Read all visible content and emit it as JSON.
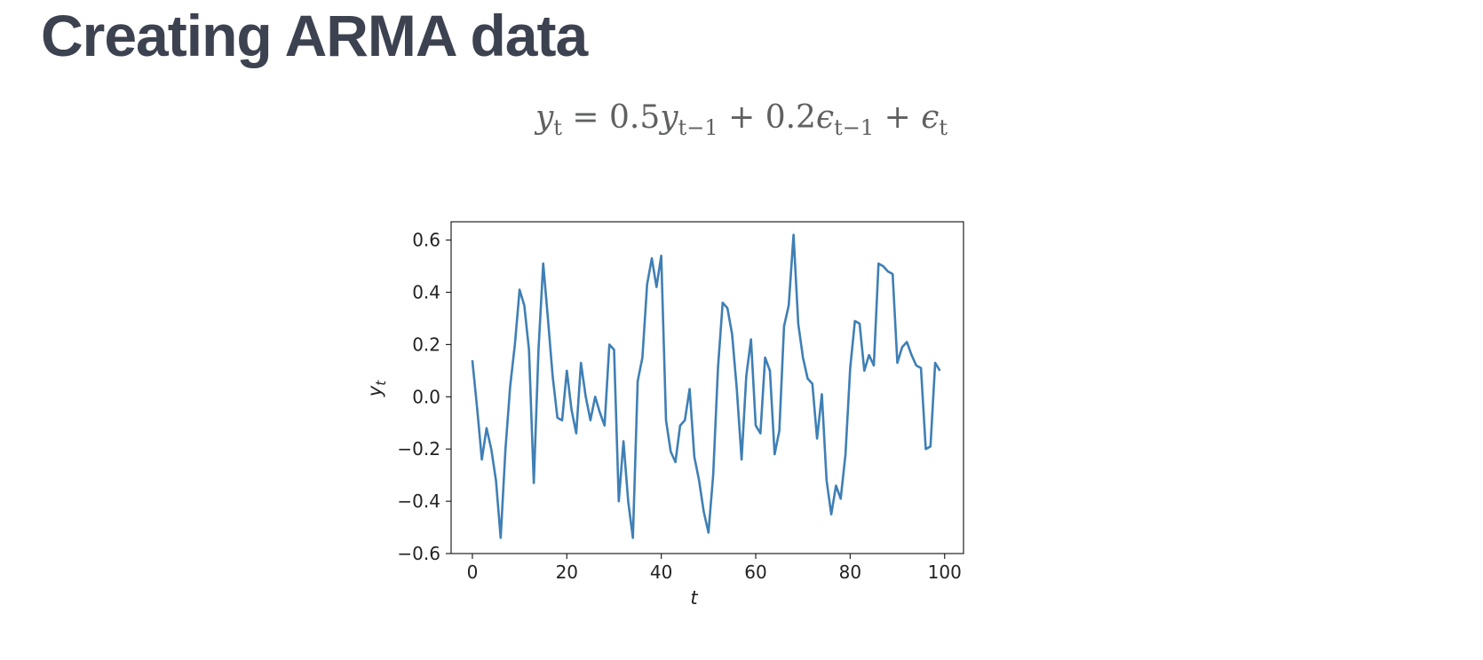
{
  "slide": {
    "title": "Creating ARMA data"
  },
  "equation": {
    "parts": [
      {
        "text": "y",
        "italic": true,
        "sub": "t"
      },
      {
        "text": " = 0.5",
        "italic": false
      },
      {
        "text": "y",
        "italic": true,
        "sub": "t−1"
      },
      {
        "text": " + 0.2",
        "italic": false
      },
      {
        "text": "ϵ",
        "italic": true,
        "sub": "t−1"
      },
      {
        "text": " + ",
        "italic": false
      },
      {
        "text": "ϵ",
        "italic": true,
        "sub": "t"
      }
    ]
  },
  "chart_data": {
    "type": "line",
    "title": "",
    "xlabel": "t",
    "ylabel": "y",
    "ylabel_sub": "t",
    "xlim": [
      -4.5,
      104
    ],
    "ylim": [
      -0.6,
      0.67
    ],
    "xticks": [
      0,
      20,
      40,
      60,
      80,
      100
    ],
    "yticks": [
      0.6,
      0.4,
      0.2,
      0.0,
      -0.2,
      -0.4,
      -0.6
    ],
    "ytick_labels": [
      "0.6",
      "0.4",
      "0.2",
      "0.0",
      "−0.2",
      "−0.4",
      "−0.6"
    ],
    "grid": false,
    "line_color": "#3f7fb5",
    "series": [
      {
        "x": [
          0,
          1,
          2,
          3,
          4,
          5,
          6,
          7,
          8,
          9,
          10,
          11,
          12,
          13,
          14,
          15,
          16,
          17,
          18,
          19,
          20,
          21,
          22,
          23,
          24,
          25,
          26,
          27,
          28,
          29,
          30,
          31,
          32,
          33,
          34,
          35,
          36,
          37,
          38,
          39,
          40,
          41,
          42,
          43,
          44,
          45,
          46,
          47,
          48,
          49,
          50,
          51,
          52,
          53,
          54,
          55,
          56,
          57,
          58,
          59,
          60,
          61,
          62,
          63,
          64,
          65,
          66,
          67,
          68,
          69,
          70,
          71,
          72,
          73,
          74,
          75,
          76,
          77,
          78,
          79,
          80,
          81,
          82,
          83,
          84,
          85,
          86,
          87,
          88,
          89,
          90,
          91,
          92,
          93,
          94,
          95,
          96,
          97,
          98,
          99
        ],
        "values": [
          0.14,
          -0.04,
          -0.24,
          -0.12,
          -0.2,
          -0.32,
          -0.54,
          -0.2,
          0.04,
          0.2,
          0.41,
          0.35,
          0.18,
          -0.33,
          0.18,
          0.51,
          0.3,
          0.08,
          -0.08,
          -0.09,
          0.1,
          -0.05,
          -0.14,
          0.13,
          0.0,
          -0.09,
          0.0,
          -0.06,
          -0.11,
          0.2,
          0.18,
          -0.4,
          -0.17,
          -0.4,
          -0.54,
          0.06,
          0.15,
          0.43,
          0.53,
          0.42,
          0.54,
          -0.09,
          -0.21,
          -0.25,
          -0.11,
          -0.09,
          0.03,
          -0.23,
          -0.32,
          -0.44,
          -0.52,
          -0.3,
          0.11,
          0.36,
          0.34,
          0.24,
          0.03,
          -0.24,
          0.08,
          0.22,
          -0.11,
          -0.14,
          0.15,
          0.1,
          -0.22,
          -0.13,
          0.27,
          0.35,
          0.62,
          0.28,
          0.15,
          0.07,
          0.05,
          -0.16,
          0.01,
          -0.32,
          -0.45,
          -0.34,
          -0.39,
          -0.22,
          0.11,
          0.29,
          0.28,
          0.1,
          0.16,
          0.12,
          0.51,
          0.5,
          0.48,
          0.47,
          0.13,
          0.19,
          0.21,
          0.16,
          0.12,
          0.11,
          -0.2,
          -0.19,
          0.13,
          0.1
        ]
      }
    ]
  }
}
